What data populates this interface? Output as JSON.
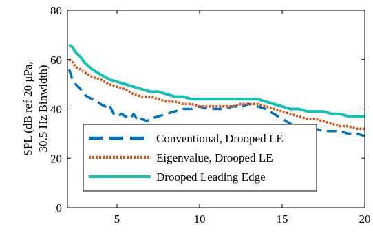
{
  "chart_data": {
    "type": "line",
    "title": "",
    "xlabel": "",
    "ylabel_lines": [
      "SPL (dB ref 20 μPa,",
      "30.5 Hz Binwidth)"
    ],
    "xlim": [
      2,
      20
    ],
    "ylim": [
      0,
      80
    ],
    "xticks": [
      5,
      10,
      15,
      20
    ],
    "yticks": [
      0,
      20,
      40,
      60,
      80
    ],
    "grid": false,
    "legend_position": "lower-left",
    "series": [
      {
        "name": "Conventional, Drooped LE",
        "color": "#0072BD",
        "style": "dashed",
        "x": [
          2.1,
          2.3,
          2.5,
          2.8,
          3.0,
          3.2,
          3.5,
          3.8,
          4.0,
          4.3,
          4.5,
          4.8,
          5.0,
          5.3,
          5.5,
          5.8,
          6.0,
          6.3,
          6.5,
          6.8,
          7.0,
          7.5,
          8.0,
          8.5,
          9.0,
          9.5,
          10.0,
          10.5,
          11.0,
          11.5,
          12.0,
          12.5,
          13.0,
          13.5,
          14.0,
          14.5,
          15.0,
          15.5,
          16.0,
          16.5,
          17.0,
          17.5,
          18.0,
          18.5,
          19.0,
          19.5,
          20.0
        ],
        "y": [
          56,
          52,
          50,
          48,
          46,
          45,
          44,
          43,
          42,
          41,
          42,
          38,
          37,
          38,
          37,
          36,
          38,
          35,
          36,
          35,
          36,
          37,
          38,
          39,
          40,
          40,
          41,
          40,
          40,
          40,
          41,
          41,
          42,
          41,
          40,
          38,
          36,
          34,
          33,
          32,
          32,
          31,
          31,
          31,
          30,
          30,
          29
        ]
      },
      {
        "name": "Eigenvalue, Drooped LE",
        "color": "#D95319",
        "style": "dotted",
        "x": [
          2.1,
          2.3,
          2.5,
          2.8,
          3.0,
          3.5,
          4.0,
          4.5,
          5.0,
          5.5,
          6.0,
          6.5,
          7.0,
          7.5,
          8.0,
          8.5,
          9.0,
          9.5,
          10.0,
          10.5,
          11.0,
          11.5,
          12.0,
          12.5,
          13.0,
          13.5,
          14.0,
          14.5,
          15.0,
          15.5,
          16.0,
          16.5,
          17.0,
          17.5,
          18.0,
          18.5,
          19.0,
          19.5,
          20.0
        ],
        "y": [
          60,
          59,
          57,
          56,
          55,
          53,
          52,
          50,
          49,
          48,
          46,
          45,
          45,
          44,
          43,
          43,
          42,
          42,
          41,
          41,
          41,
          41,
          41,
          42,
          42,
          42,
          41,
          40,
          39,
          38,
          37,
          36,
          36,
          35,
          34,
          33,
          33,
          32,
          32
        ]
      },
      {
        "name": "Drooped Leading Edge",
        "color": "#1ABFB0",
        "style": "solid",
        "x": [
          2.1,
          2.3,
          2.5,
          2.8,
          3.0,
          3.5,
          4.0,
          4.5,
          5.0,
          5.5,
          6.0,
          6.5,
          7.0,
          7.5,
          8.0,
          8.5,
          9.0,
          9.5,
          10.0,
          10.5,
          11.0,
          11.5,
          12.0,
          12.5,
          13.0,
          13.5,
          14.0,
          14.5,
          15.0,
          15.5,
          16.0,
          16.5,
          17.0,
          17.5,
          18.0,
          18.5,
          19.0,
          19.5,
          20.0
        ],
        "y": [
          66,
          65,
          63,
          61,
          59,
          56,
          54,
          52,
          51,
          50,
          49,
          48,
          47,
          47,
          46,
          45,
          45,
          44,
          44,
          44,
          44,
          44,
          44,
          44,
          44,
          44,
          43,
          42,
          41,
          40,
          40,
          39,
          39,
          39,
          38,
          38,
          37,
          37,
          37
        ]
      }
    ]
  }
}
